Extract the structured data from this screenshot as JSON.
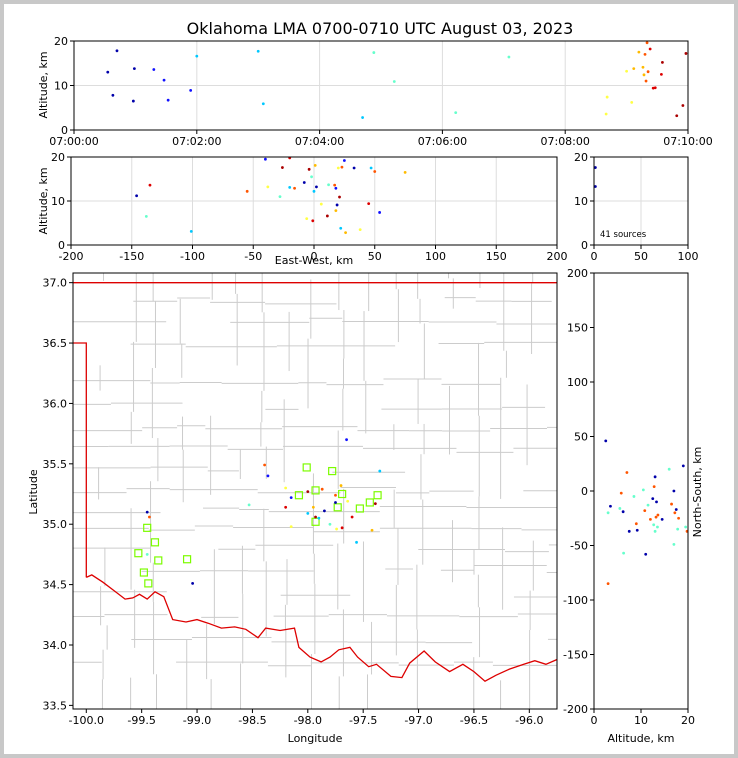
{
  "title": "Oklahoma LMA 0700-0710 UTC August 03, 2023",
  "source_count": "41 sources",
  "colors": {
    "grid": "#dddddd",
    "state_border": "#dd0000",
    "county_lines": "#cccccc",
    "station": "#7cfc00",
    "time_palette": [
      "#0000aa",
      "#1111ff",
      "#00c8ff",
      "#66ffcc",
      "#ffff44",
      "#ffbb00",
      "#ff5500",
      "#dd0000",
      "#aa0000"
    ]
  },
  "chart_data": [
    {
      "id": "alt_time",
      "type": "scatter",
      "xlabel": "",
      "ylabel": "Altitude, km",
      "xlim": [
        "07:00:00",
        "07:10:00"
      ],
      "ylim": [
        0,
        20
      ],
      "xtick_labels": [
        "07:00:00",
        "07:02:00",
        "07:04:00",
        "07:06:00",
        "07:08:00",
        "07:10:00"
      ],
      "yticks": [
        0,
        10,
        20
      ],
      "grid": true,
      "points": [
        {
          "t": "07:00:33",
          "alt": 13.0
        },
        {
          "t": "07:00:38",
          "alt": 7.8
        },
        {
          "t": "07:00:42",
          "alt": 17.8
        },
        {
          "t": "07:00:58",
          "alt": 6.5
        },
        {
          "t": "07:00:59",
          "alt": 13.8
        },
        {
          "t": "07:01:18",
          "alt": 13.6
        },
        {
          "t": "07:01:28",
          "alt": 11.2
        },
        {
          "t": "07:01:32",
          "alt": 6.7
        },
        {
          "t": "07:01:54",
          "alt": 8.9
        },
        {
          "t": "07:02:00",
          "alt": 16.6
        },
        {
          "t": "07:03:00",
          "alt": 17.7
        },
        {
          "t": "07:03:05",
          "alt": 5.9
        },
        {
          "t": "07:04:42",
          "alt": 2.8
        },
        {
          "t": "07:04:53",
          "alt": 17.4
        },
        {
          "t": "07:05:13",
          "alt": 10.9
        },
        {
          "t": "07:06:13",
          "alt": 3.9
        },
        {
          "t": "07:07:05",
          "alt": 16.4
        },
        {
          "t": "07:08:40",
          "alt": 3.6
        },
        {
          "t": "07:08:41",
          "alt": 7.4
        },
        {
          "t": "07:09:00",
          "alt": 13.2
        },
        {
          "t": "07:09:05",
          "alt": 6.2
        },
        {
          "t": "07:09:07",
          "alt": 13.8
        },
        {
          "t": "07:09:12",
          "alt": 17.5
        },
        {
          "t": "07:09:16",
          "alt": 14.1
        },
        {
          "t": "07:09:17",
          "alt": 12.4
        },
        {
          "t": "07:09:18",
          "alt": 17.0
        },
        {
          "t": "07:09:19",
          "alt": 11.0
        },
        {
          "t": "07:09:20",
          "alt": 19.6
        },
        {
          "t": "07:09:21",
          "alt": 13.1
        },
        {
          "t": "07:09:23",
          "alt": 18.2
        },
        {
          "t": "07:09:26",
          "alt": 9.4
        },
        {
          "t": "07:09:28",
          "alt": 9.5
        },
        {
          "t": "07:09:34",
          "alt": 12.5
        },
        {
          "t": "07:09:35",
          "alt": 15.2
        },
        {
          "t": "07:09:49",
          "alt": 3.2
        },
        {
          "t": "07:09:55",
          "alt": 5.5
        },
        {
          "t": "07:09:58",
          "alt": 17.2
        }
      ]
    },
    {
      "id": "alt_ew",
      "type": "scatter",
      "xlabel": "East-West, km",
      "ylabel": "Altitude, km",
      "xlim": [
        -200,
        200
      ],
      "ylim": [
        0,
        20
      ],
      "xticks": [
        -200,
        -150,
        -100,
        -50,
        0,
        50,
        100,
        150,
        200
      ],
      "yticks": [
        0,
        10,
        20
      ],
      "grid": true,
      "points": [
        {
          "x": -146,
          "alt": 11.2
        },
        {
          "x": -138,
          "alt": 6.5
        },
        {
          "x": -135,
          "alt": 13.6
        },
        {
          "x": -101,
          "alt": 3.1
        },
        {
          "x": -55,
          "alt": 12.2
        },
        {
          "x": -40,
          "alt": 19.5
        },
        {
          "x": -38,
          "alt": 13.2
        },
        {
          "x": -26,
          "alt": 17.6
        },
        {
          "x": -28,
          "alt": 11.0
        },
        {
          "x": -20,
          "alt": 19.8
        },
        {
          "x": -20,
          "alt": 13.1
        },
        {
          "x": -16,
          "alt": 12.9
        },
        {
          "x": -8,
          "alt": 14.2
        },
        {
          "x": -6,
          "alt": 6.0
        },
        {
          "x": -4,
          "alt": 17.2
        },
        {
          "x": -2,
          "alt": 15.5
        },
        {
          "x": -1,
          "alt": 5.5
        },
        {
          "x": 0,
          "alt": 12.2
        },
        {
          "x": 1,
          "alt": 18.1
        },
        {
          "x": 2,
          "alt": 13.2
        },
        {
          "x": 6,
          "alt": 9.3
        },
        {
          "x": 11,
          "alt": 6.6
        },
        {
          "x": 12,
          "alt": 13.7
        },
        {
          "x": 17,
          "alt": 13.6
        },
        {
          "x": 18,
          "alt": 12.9
        },
        {
          "x": 18,
          "alt": 7.8
        },
        {
          "x": 19,
          "alt": 9.1
        },
        {
          "x": 20,
          "alt": 17.5
        },
        {
          "x": 21,
          "alt": 10.9
        },
        {
          "x": 22,
          "alt": 3.8
        },
        {
          "x": 23,
          "alt": 17.7
        },
        {
          "x": 25,
          "alt": 19.2
        },
        {
          "x": 26,
          "alt": 2.8
        },
        {
          "x": 33,
          "alt": 17.5
        },
        {
          "x": 38,
          "alt": 3.5
        },
        {
          "x": 45,
          "alt": 9.4
        },
        {
          "x": 47,
          "alt": 17.5
        },
        {
          "x": 50,
          "alt": 16.7
        },
        {
          "x": 54,
          "alt": 7.4
        },
        {
          "x": 75,
          "alt": 16.5
        }
      ]
    },
    {
      "id": "histogram",
      "type": "bar",
      "xlabel": "",
      "ylabel": "",
      "xlim": [
        0,
        100
      ],
      "ylim": [
        0,
        20
      ],
      "xticks": [
        0,
        50,
        100
      ],
      "yticks": [
        0,
        10,
        20
      ],
      "grid": true,
      "points": [
        {
          "x": 0.4,
          "alt": 13.3
        },
        {
          "x": 0.4,
          "alt": 17.6
        }
      ]
    },
    {
      "id": "plan_view",
      "type": "scatter",
      "xlabel": "Longitude",
      "ylabel": "Latitude",
      "xlim": [
        -100.12,
        -95.75
      ],
      "ylim": [
        33.47,
        37.08
      ],
      "xticks": [
        -100.0,
        -99.5,
        -99.0,
        -98.5,
        -98.0,
        -97.5,
        -97.0,
        -96.5,
        -96.0
      ],
      "yticks": [
        33.5,
        34.0,
        34.5,
        35.0,
        35.5,
        36.0,
        36.5,
        37.0
      ],
      "grid": false,
      "stations": [
        {
          "lon": -99.45,
          "lat": 34.97
        },
        {
          "lon": -99.53,
          "lat": 34.76
        },
        {
          "lon": -99.38,
          "lat": 34.85
        },
        {
          "lon": -99.35,
          "lat": 34.7
        },
        {
          "lon": -99.48,
          "lat": 34.6
        },
        {
          "lon": -99.44,
          "lat": 34.51
        },
        {
          "lon": -99.09,
          "lat": 34.71
        },
        {
          "lon": -98.01,
          "lat": 35.47
        },
        {
          "lon": -98.08,
          "lat": 35.24
        },
        {
          "lon": -97.93,
          "lat": 35.28
        },
        {
          "lon": -97.78,
          "lat": 35.44
        },
        {
          "lon": -97.69,
          "lat": 35.25
        },
        {
          "lon": -97.93,
          "lat": 35.02
        },
        {
          "lon": -97.73,
          "lat": 35.14
        },
        {
          "lon": -97.53,
          "lat": 35.13
        },
        {
          "lon": -97.44,
          "lat": 35.18
        },
        {
          "lon": -97.37,
          "lat": 35.24
        }
      ],
      "points": [
        {
          "lon": -99.45,
          "lat": 35.1
        },
        {
          "lon": -99.45,
          "lat": 34.75
        },
        {
          "lon": -99.43,
          "lat": 35.06
        },
        {
          "lon": -99.04,
          "lat": 34.51
        },
        {
          "lon": -98.53,
          "lat": 35.16
        },
        {
          "lon": -98.39,
          "lat": 35.49
        },
        {
          "lon": -98.36,
          "lat": 35.4
        },
        {
          "lon": -98.2,
          "lat": 35.3
        },
        {
          "lon": -98.2,
          "lat": 35.14
        },
        {
          "lon": -98.15,
          "lat": 35.22
        },
        {
          "lon": -98.15,
          "lat": 34.98
        },
        {
          "lon": -98.0,
          "lat": 35.27
        },
        {
          "lon": -98.0,
          "lat": 35.09
        },
        {
          "lon": -97.95,
          "lat": 35.14
        },
        {
          "lon": -97.93,
          "lat": 35.06
        },
        {
          "lon": -97.9,
          "lat": 35.05
        },
        {
          "lon": -97.87,
          "lat": 35.29
        },
        {
          "lon": -97.85,
          "lat": 35.11
        },
        {
          "lon": -97.8,
          "lat": 35.0
        },
        {
          "lon": -97.75,
          "lat": 35.24
        },
        {
          "lon": -97.75,
          "lat": 35.18
        },
        {
          "lon": -97.74,
          "lat": 34.96
        },
        {
          "lon": -97.69,
          "lat": 34.97
        },
        {
          "lon": -97.65,
          "lat": 35.7
        },
        {
          "lon": -97.64,
          "lat": 35.19
        },
        {
          "lon": -97.6,
          "lat": 35.06
        },
        {
          "lon": -97.56,
          "lat": 34.85
        },
        {
          "lon": -97.42,
          "lat": 34.95
        },
        {
          "lon": -97.39,
          "lat": 35.17
        },
        {
          "lon": -97.35,
          "lat": 35.44
        },
        {
          "lon": -97.7,
          "lat": 35.32
        }
      ]
    },
    {
      "id": "ns_alt",
      "type": "scatter",
      "xlabel": "Altitude, km",
      "ylabel": "North-South, km",
      "xlim": [
        0,
        20
      ],
      "ylim": [
        -200,
        200
      ],
      "xticks": [
        0,
        10,
        20
      ],
      "yticks": [
        -200,
        -150,
        -100,
        -50,
        0,
        50,
        100,
        150,
        200
      ],
      "grid": false,
      "points": [
        {
          "alt": 2.5,
          "y": 46
        },
        {
          "alt": 3.0,
          "y": -20
        },
        {
          "alt": 3.0,
          "y": -85
        },
        {
          "alt": 3.5,
          "y": -14
        },
        {
          "alt": 5.5,
          "y": -16
        },
        {
          "alt": 5.8,
          "y": -2
        },
        {
          "alt": 6.2,
          "y": -19
        },
        {
          "alt": 6.3,
          "y": -57
        },
        {
          "alt": 7.0,
          "y": 17
        },
        {
          "alt": 7.5,
          "y": -37
        },
        {
          "alt": 8.5,
          "y": -5
        },
        {
          "alt": 9.0,
          "y": -30
        },
        {
          "alt": 9.2,
          "y": -36
        },
        {
          "alt": 10.5,
          "y": 1
        },
        {
          "alt": 10.8,
          "y": -18
        },
        {
          "alt": 11.0,
          "y": -58
        },
        {
          "alt": 11.5,
          "y": -13
        },
        {
          "alt": 12.0,
          "y": -26
        },
        {
          "alt": 12.5,
          "y": -7
        },
        {
          "alt": 12.7,
          "y": -31
        },
        {
          "alt": 12.8,
          "y": 4
        },
        {
          "alt": 13.0,
          "y": 13
        },
        {
          "alt": 13.0,
          "y": -37
        },
        {
          "alt": 13.2,
          "y": -24
        },
        {
          "alt": 13.3,
          "y": -10
        },
        {
          "alt": 13.5,
          "y": -33
        },
        {
          "alt": 13.6,
          "y": -22
        },
        {
          "alt": 14.5,
          "y": -26
        },
        {
          "alt": 16.0,
          "y": 20
        },
        {
          "alt": 16.5,
          "y": -12
        },
        {
          "alt": 17.0,
          "y": 0
        },
        {
          "alt": 17.0,
          "y": -49
        },
        {
          "alt": 17.2,
          "y": -20
        },
        {
          "alt": 17.5,
          "y": -17
        },
        {
          "alt": 17.8,
          "y": -35
        },
        {
          "alt": 18.0,
          "y": -25
        },
        {
          "alt": 19.0,
          "y": 23
        },
        {
          "alt": 19.5,
          "y": -33
        },
        {
          "alt": 19.8,
          "y": -37
        }
      ]
    }
  ]
}
